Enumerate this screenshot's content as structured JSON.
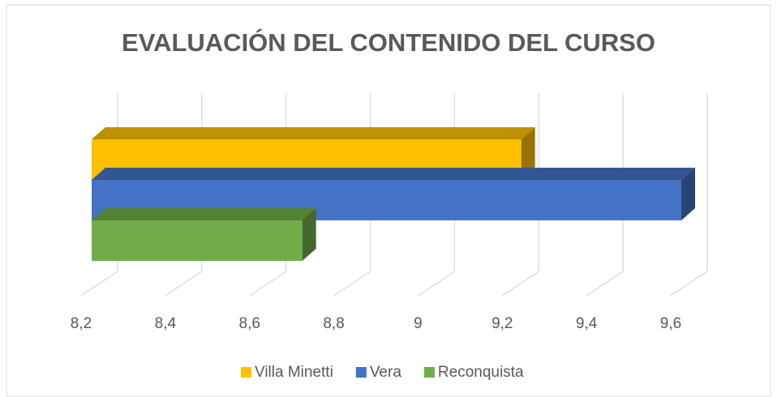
{
  "chart_data": {
    "type": "bar3d_horizontal",
    "title": "EVALUACIÓN DEL CONTENIDO DEL CURSO",
    "categories": [
      ""
    ],
    "series": [
      {
        "name": "Villa Minetti",
        "color": "#ffc000",
        "values": [
          9.22
        ]
      },
      {
        "name": "Vera",
        "color": "#4472c4",
        "values": [
          9.6
        ]
      },
      {
        "name": "Reconquista",
        "color": "#70ad47",
        "values": [
          8.7
        ]
      }
    ],
    "xlim": [
      8.2,
      9.6
    ],
    "xticks": [
      {
        "value": 8.2,
        "label": "8,2"
      },
      {
        "value": 8.4,
        "label": "8,4"
      },
      {
        "value": 8.6,
        "label": "8,6"
      },
      {
        "value": 8.8,
        "label": "8,8"
      },
      9,
      {
        "value": 9.2,
        "label": "9,2"
      },
      {
        "value": 9.4,
        "label": "9,4"
      },
      {
        "value": 9.6,
        "label": "9,6"
      }
    ],
    "grid": true,
    "legend": "bottom"
  }
}
